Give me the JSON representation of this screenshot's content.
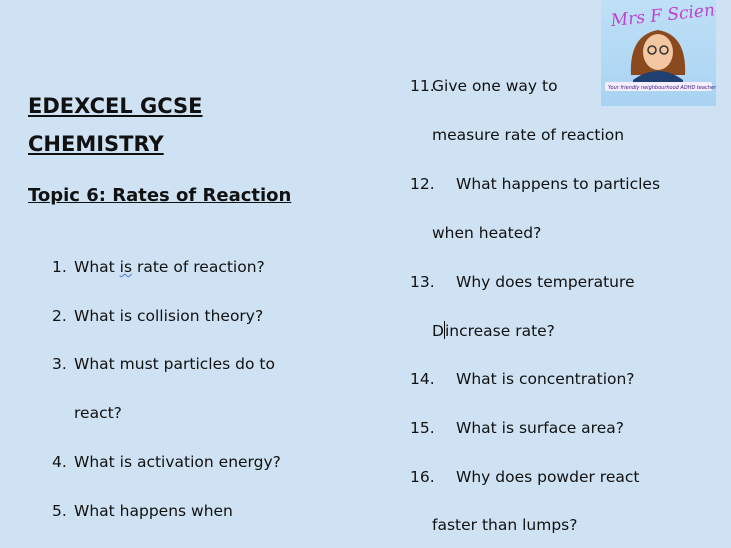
{
  "header": {
    "title_line1": "EDEXCEL GCSE",
    "title_line2": "CHEMISTRY",
    "topic": "Topic 6: Rates of Reaction"
  },
  "logo": {
    "brand": "Mrs F Science",
    "tagline": "Your friendly neighbourhood ADHD teacher"
  },
  "left_questions": [
    {
      "num": "1.",
      "pre": "What ",
      "squiggle": "is",
      "post": " rate of reaction?"
    },
    {
      "num": "2.",
      "text": "What is collision theory?"
    },
    {
      "num": "3.",
      "text": "What must particles do to",
      "cont": "react?"
    },
    {
      "num": "4.",
      "text": "What is activation energy?"
    },
    {
      "num": "5.",
      "text": "What happens when"
    }
  ],
  "right_questions": [
    {
      "num": "11.",
      "text": "Give one way to",
      "cont": "measure rate of reaction"
    },
    {
      "num": "12.",
      "text": "What happens to particles",
      "cont": "when heated?"
    },
    {
      "num": "13.",
      "text": "Why does temperature",
      "cont_pre": "D",
      "cont": "increase rate?"
    },
    {
      "num": "14.",
      "text": "What is concentration?"
    },
    {
      "num": "15.",
      "text": "What is surface area?"
    },
    {
      "num": "16.",
      "text": "Why does powder react",
      "cont": "faster than lumps?"
    }
  ]
}
